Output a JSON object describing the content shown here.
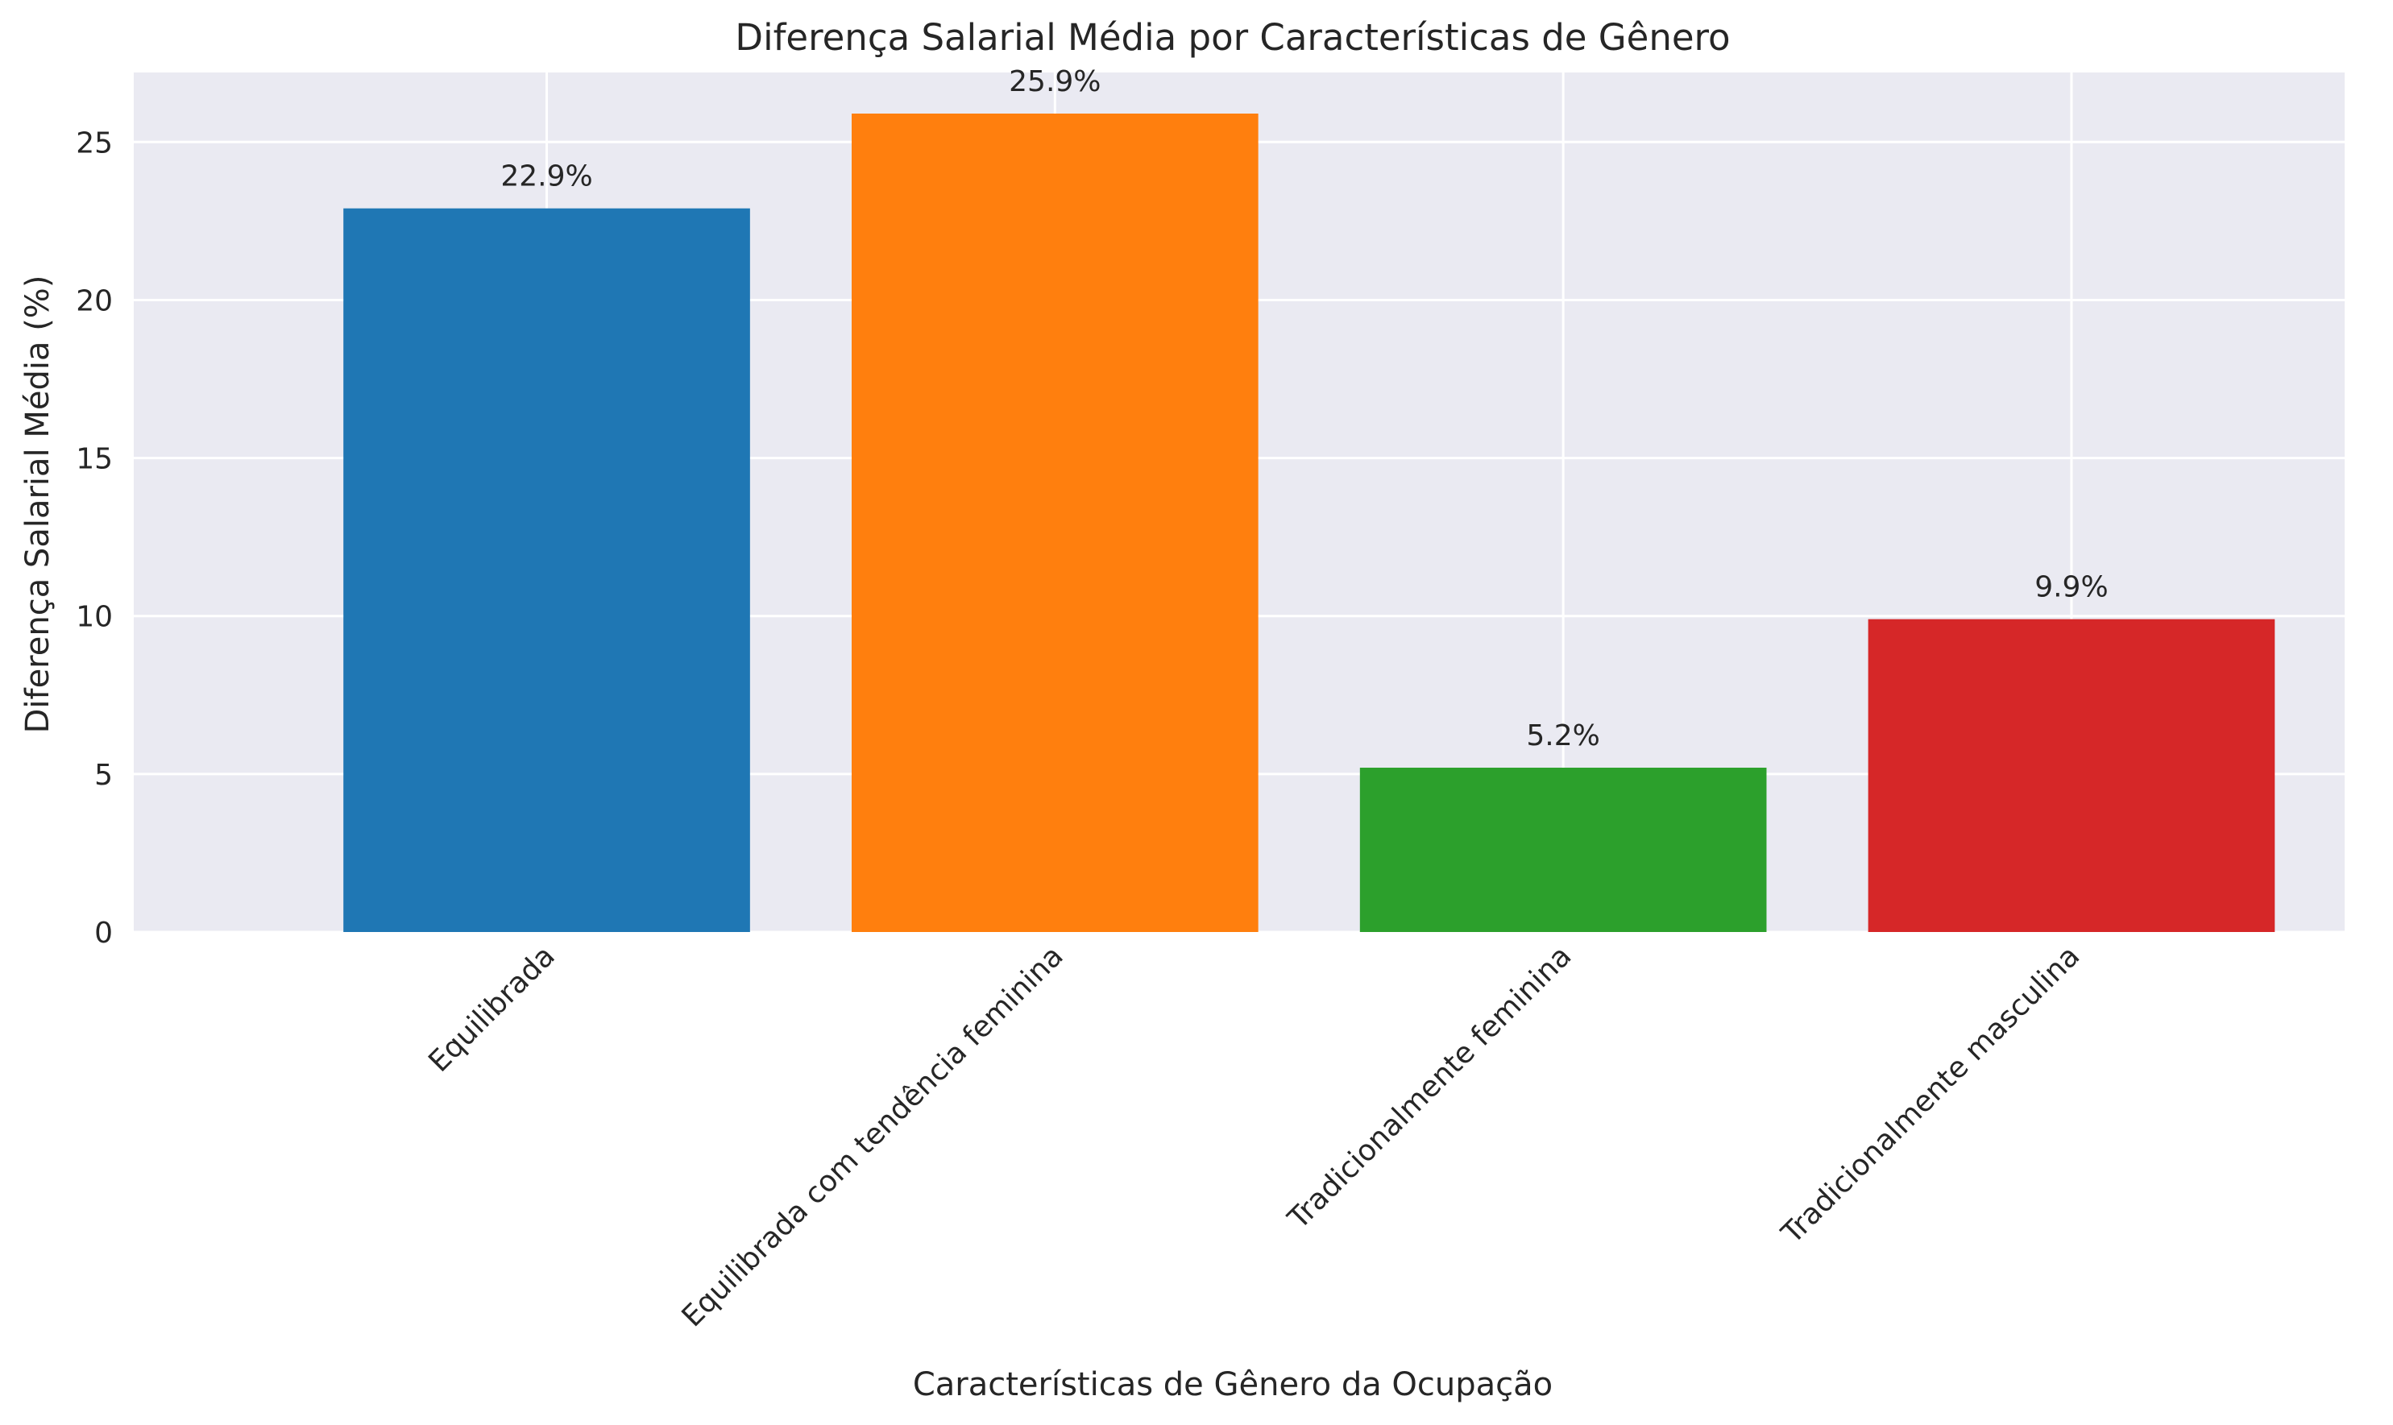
{
  "chart_data": {
    "type": "bar",
    "title": "Diferença Salarial Média por Características de Gênero",
    "xlabel": "Características de Gênero da Ocupação",
    "ylabel": "Diferença Salarial Média (%)",
    "categories": [
      "Equilibrada",
      "Equilibrada com tendência feminina",
      "Tradicionalmente feminina",
      "Tradicionalmente masculina"
    ],
    "values": [
      22.9,
      25.9,
      5.2,
      9.9
    ],
    "data_labels": [
      "22.9%",
      "25.9%",
      "5.2%",
      "9.9%"
    ],
    "colors": [
      "#1f77b4",
      "#ff7f0e",
      "#2ca02c",
      "#d62728"
    ],
    "yticks": [
      0,
      5,
      10,
      15,
      20,
      25
    ],
    "ylim": [
      0,
      27.2
    ],
    "grid": true,
    "background": "#eaeaf2"
  }
}
